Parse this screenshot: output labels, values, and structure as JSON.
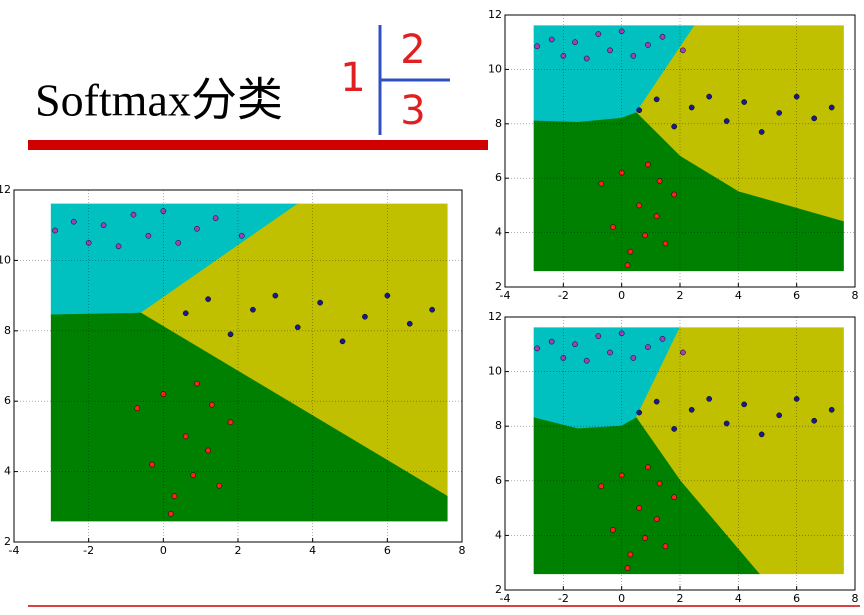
{
  "title": "Softmax分类",
  "page_marks": [
    "1",
    "2",
    "3"
  ],
  "chart_data": [
    {
      "type": "scatter",
      "xlim": [
        -4,
        8
      ],
      "ylim": [
        2,
        12
      ],
      "xticks": [
        -4,
        -2,
        0,
        2,
        4,
        6,
        8
      ],
      "yticks": [
        2,
        4,
        6,
        8,
        10,
        12
      ],
      "grid": true,
      "regions": [
        {
          "color": "#00c0c0",
          "points": [
            [
              -3,
              11.6
            ],
            [
              3.6,
              11.6
            ],
            [
              -0.6,
              8.5
            ],
            [
              -3,
              8.45
            ]
          ]
        },
        {
          "color": "#c0c000",
          "points": [
            [
              3.6,
              11.6
            ],
            [
              7.6,
              11.6
            ],
            [
              7.6,
              3.3
            ],
            [
              -0.6,
              8.5
            ]
          ]
        },
        {
          "color": "#008000",
          "points": [
            [
              -3,
              8.45
            ],
            [
              -0.6,
              8.5
            ],
            [
              7.6,
              3.3
            ],
            [
              7.6,
              2.6
            ],
            [
              -3,
              2.6
            ]
          ]
        }
      ],
      "series": [
        {
          "color": "#a040c0",
          "x": [
            -2.9,
            -2.4,
            -2,
            -1.6,
            -1.2,
            -0.8,
            -0.4,
            0,
            0.4,
            0.9,
            1.4,
            2.1
          ],
          "values": [
            10.85,
            11.1,
            10.5,
            11.0,
            10.4,
            11.3,
            10.7,
            11.4,
            10.5,
            10.9,
            11.2,
            10.7
          ]
        },
        {
          "color": "#1a1a90",
          "x": [
            0.6,
            1.2,
            1.8,
            2.4,
            3.0,
            3.6,
            4.2,
            4.8,
            5.4,
            6.0,
            6.6,
            7.2
          ],
          "values": [
            8.5,
            8.9,
            7.9,
            8.6,
            9.0,
            8.1,
            8.8,
            7.7,
            8.4,
            9.0,
            8.2,
            8.6
          ]
        },
        {
          "color": "#ff2020",
          "x": [
            -0.7,
            -0.3,
            0,
            0.3,
            0.6,
            0.9,
            1.2,
            1.5,
            1.8,
            0.2,
            0.8,
            1.3
          ],
          "values": [
            5.8,
            4.2,
            6.2,
            3.3,
            5.0,
            6.5,
            4.6,
            3.6,
            5.4,
            2.8,
            3.9,
            5.9
          ]
        }
      ]
    },
    {
      "type": "scatter",
      "xlim": [
        -4,
        8
      ],
      "ylim": [
        2,
        12
      ],
      "xticks": [
        -4,
        -2,
        0,
        2,
        4,
        6,
        8
      ],
      "yticks": [
        2,
        4,
        6,
        8,
        10,
        12
      ],
      "grid": true,
      "regions": [
        {
          "color": "#00c0c0",
          "points": [
            [
              -3,
              11.6
            ],
            [
              2.5,
              11.6
            ],
            [
              0.5,
              8.4
            ],
            [
              0,
              8.2
            ],
            [
              -1.5,
              8.05
            ],
            [
              -3,
              8.1
            ]
          ]
        },
        {
          "color": "#c0c000",
          "points": [
            [
              2.5,
              11.6
            ],
            [
              7.6,
              11.6
            ],
            [
              7.6,
              4.4
            ],
            [
              4,
              5.5
            ],
            [
              2,
              6.8
            ],
            [
              0.5,
              8.4
            ]
          ]
        },
        {
          "color": "#008000",
          "points": [
            [
              -3,
              8.1
            ],
            [
              -1.5,
              8.05
            ],
            [
              0,
              8.2
            ],
            [
              0.5,
              8.4
            ],
            [
              2,
              6.8
            ],
            [
              4,
              5.5
            ],
            [
              7.6,
              4.4
            ],
            [
              7.6,
              2.6
            ],
            [
              -3,
              2.6
            ]
          ]
        }
      ],
      "series": [
        {
          "color": "#a040c0",
          "x": [
            -2.9,
            -2.4,
            -2,
            -1.6,
            -1.2,
            -0.8,
            -0.4,
            0,
            0.4,
            0.9,
            1.4,
            2.1
          ],
          "values": [
            10.85,
            11.1,
            10.5,
            11.0,
            10.4,
            11.3,
            10.7,
            11.4,
            10.5,
            10.9,
            11.2,
            10.7
          ]
        },
        {
          "color": "#1a1a90",
          "x": [
            0.6,
            1.2,
            1.8,
            2.4,
            3.0,
            3.6,
            4.2,
            4.8,
            5.4,
            6.0,
            6.6,
            7.2
          ],
          "values": [
            8.5,
            8.9,
            7.9,
            8.6,
            9.0,
            8.1,
            8.8,
            7.7,
            8.4,
            9.0,
            8.2,
            8.6
          ]
        },
        {
          "color": "#ff2020",
          "x": [
            -0.7,
            -0.3,
            0,
            0.3,
            0.6,
            0.9,
            1.2,
            1.5,
            1.8,
            0.2,
            0.8,
            1.3
          ],
          "values": [
            5.8,
            4.2,
            6.2,
            3.3,
            5.0,
            6.5,
            4.6,
            3.6,
            5.4,
            2.8,
            3.9,
            5.9
          ]
        }
      ]
    },
    {
      "type": "scatter",
      "xlim": [
        -4,
        8
      ],
      "ylim": [
        2,
        12
      ],
      "xticks": [
        -4,
        -2,
        0,
        2,
        4,
        6,
        8
      ],
      "yticks": [
        2,
        4,
        6,
        8,
        10,
        12
      ],
      "grid": true,
      "regions": [
        {
          "color": "#00c0c0",
          "points": [
            [
              -3,
              11.6
            ],
            [
              2,
              11.6
            ],
            [
              0.5,
              8.3
            ],
            [
              0,
              8.0
            ],
            [
              -1.5,
              7.9
            ],
            [
              -3,
              8.3
            ]
          ]
        },
        {
          "color": "#c0c000",
          "points": [
            [
              2,
              11.6
            ],
            [
              7.6,
              11.6
            ],
            [
              7.6,
              2.6
            ],
            [
              4.7,
              2.6
            ],
            [
              2,
              6
            ],
            [
              0.5,
              8.3
            ]
          ]
        },
        {
          "color": "#008000",
          "points": [
            [
              -3,
              8.3
            ],
            [
              -1.5,
              7.9
            ],
            [
              0,
              8.0
            ],
            [
              0.5,
              8.3
            ],
            [
              2,
              6
            ],
            [
              4.7,
              2.6
            ],
            [
              -3,
              2.6
            ]
          ]
        }
      ],
      "series": [
        {
          "color": "#a040c0",
          "x": [
            -2.9,
            -2.4,
            -2,
            -1.6,
            -1.2,
            -0.8,
            -0.4,
            0,
            0.4,
            0.9,
            1.4,
            2.1
          ],
          "values": [
            10.85,
            11.1,
            10.5,
            11.0,
            10.4,
            11.3,
            10.7,
            11.4,
            10.5,
            10.9,
            11.2,
            10.7
          ]
        },
        {
          "color": "#1a1a90",
          "x": [
            0.6,
            1.2,
            1.8,
            2.4,
            3.0,
            3.6,
            4.2,
            4.8,
            5.4,
            6.0,
            6.6,
            7.2
          ],
          "values": [
            8.5,
            8.9,
            7.9,
            8.6,
            9.0,
            8.1,
            8.8,
            7.7,
            8.4,
            9.0,
            8.2,
            8.6
          ]
        },
        {
          "color": "#ff2020",
          "x": [
            -0.7,
            -0.3,
            0,
            0.3,
            0.6,
            0.9,
            1.2,
            1.5,
            1.8,
            0.2,
            0.8,
            1.3
          ],
          "values": [
            5.8,
            4.2,
            6.2,
            3.3,
            5.0,
            6.5,
            4.6,
            3.6,
            5.4,
            2.8,
            3.9,
            5.9
          ]
        }
      ]
    }
  ]
}
